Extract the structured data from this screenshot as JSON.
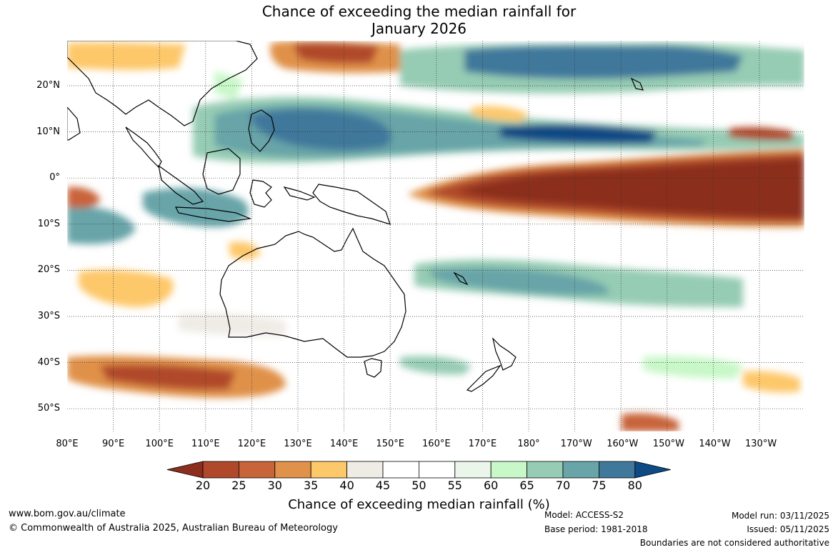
{
  "title_line1": "Chance of exceeding the median rainfall for",
  "title_line2": "January 2026",
  "map": {
    "lon_ticks": [
      "80°E",
      "90°E",
      "100°E",
      "110°E",
      "120°E",
      "130°E",
      "140°E",
      "150°E",
      "160°E",
      "170°E",
      "180°",
      "170°W",
      "160°W",
      "150°W",
      "140°W",
      "130°W"
    ],
    "lat_ticks": [
      "20°N",
      "10°N",
      "0°",
      "10°S",
      "20°S",
      "30°S",
      "40°S",
      "50°S"
    ]
  },
  "colorbar": {
    "ticks": [
      "20",
      "25",
      "30",
      "35",
      "40",
      "45",
      "50",
      "55",
      "60",
      "65",
      "70",
      "75",
      "80"
    ],
    "colors": [
      "#8b2e1d",
      "#b0482a",
      "#c8643a",
      "#e0914a",
      "#fdc86a",
      "#efece6",
      "#ffffff",
      "#ffffff",
      "#eaf6ea",
      "#c8f7c8",
      "#96ccb4",
      "#68a4a8",
      "#40789b",
      "#0e4a86"
    ],
    "title": "Chance of exceeding median rainfall (%)"
  },
  "footer": {
    "website": "www.bom.gov.au/climate",
    "copyright": "© Commonwealth of Australia 2025, Australian Bureau of Meteorology",
    "model": "Model: ACCESS-S2",
    "base_period": "Base period: 1981-2018",
    "model_run": "Model run: 03/11/2025",
    "issued": "Issued: 05/11/2025",
    "disclaimer": "Boundaries are not considered authoritative"
  }
}
